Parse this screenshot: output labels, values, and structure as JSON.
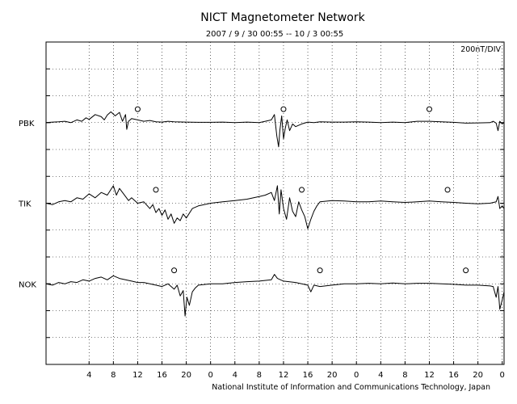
{
  "chart_data": {
    "type": "line",
    "title": "NICT Magnetometer Network",
    "subtitle": "2007 / 9 / 30   00:55 -- 10 / 3   00:55",
    "scale_label": "200nT/DIV",
    "footer": "National Institute of Information and Communications Technology, Japan",
    "grid": true,
    "x_tick_labels": [
      "4",
      "8",
      "12",
      "16",
      "20",
      "0",
      "4",
      "8",
      "12",
      "16",
      "20",
      "0",
      "4",
      "8",
      "12",
      "16",
      "20",
      "0"
    ],
    "x_tick_hours": [
      4,
      8,
      12,
      16,
      20,
      24,
      28,
      32,
      36,
      40,
      44,
      48,
      52,
      56,
      60,
      64,
      68,
      72
    ],
    "xlim_hours": [
      -3.08,
      72.3
    ],
    "y_divisions": 12,
    "series": [
      {
        "name": "PBK",
        "baseline_div": 3,
        "noon_markers_hours": [
          12,
          36,
          60
        ],
        "points": [
          [
            -3.08,
            0.0
          ],
          [
            -2,
            0.02
          ],
          [
            -1,
            0.03
          ],
          [
            0,
            0.05
          ],
          [
            1,
            0.0
          ],
          [
            2,
            0.1
          ],
          [
            2.8,
            0.05
          ],
          [
            3.5,
            0.18
          ],
          [
            4,
            0.12
          ],
          [
            5,
            0.3
          ],
          [
            6,
            0.22
          ],
          [
            6.5,
            0.1
          ],
          [
            7,
            0.28
          ],
          [
            7.6,
            0.4
          ],
          [
            8.3,
            0.25
          ],
          [
            9,
            0.38
          ],
          [
            9.5,
            0.05
          ],
          [
            10,
            0.3
          ],
          [
            10.2,
            -0.25
          ],
          [
            10.5,
            0.05
          ],
          [
            11,
            0.15
          ],
          [
            12,
            0.1
          ],
          [
            13,
            0.05
          ],
          [
            14,
            0.08
          ],
          [
            15,
            0.03
          ],
          [
            16,
            0.02
          ],
          [
            17,
            0.05
          ],
          [
            18,
            0.03
          ],
          [
            20,
            0.02
          ],
          [
            22,
            0.01
          ],
          [
            24,
            0.01
          ],
          [
            26,
            0.02
          ],
          [
            28,
            0.0
          ],
          [
            30,
            0.02
          ],
          [
            32,
            0.0
          ],
          [
            33,
            0.05
          ],
          [
            34,
            0.1
          ],
          [
            34.5,
            0.3
          ],
          [
            34.9,
            -0.5
          ],
          [
            35.2,
            -0.9
          ],
          [
            35.4,
            -0.3
          ],
          [
            35.7,
            0.25
          ],
          [
            36,
            -0.6
          ],
          [
            36.3,
            -0.2
          ],
          [
            36.6,
            0.1
          ],
          [
            37,
            -0.3
          ],
          [
            37.5,
            -0.05
          ],
          [
            38,
            -0.15
          ],
          [
            39,
            -0.05
          ],
          [
            40,
            0.02
          ],
          [
            41,
            0.0
          ],
          [
            42,
            0.03
          ],
          [
            44,
            0.02
          ],
          [
            46,
            0.02
          ],
          [
            48,
            0.03
          ],
          [
            50,
            0.02
          ],
          [
            52,
            0.0
          ],
          [
            54,
            0.02
          ],
          [
            56,
            0.0
          ],
          [
            58,
            0.05
          ],
          [
            60,
            0.05
          ],
          [
            62,
            0.03
          ],
          [
            64,
            0.01
          ],
          [
            66,
            -0.02
          ],
          [
            68,
            -0.01
          ],
          [
            70,
            0.0
          ],
          [
            70.5,
            0.05
          ],
          [
            71,
            -0.02
          ],
          [
            71.3,
            -0.3
          ],
          [
            71.6,
            0.05
          ],
          [
            72,
            -0.05
          ],
          [
            72.3,
            0.0
          ]
        ]
      },
      {
        "name": "TIK",
        "baseline_div": 6,
        "noon_markers_hours": [
          15,
          39,
          63
        ],
        "points": [
          [
            -3.08,
            0.0
          ],
          [
            -2,
            -0.05
          ],
          [
            -1,
            0.05
          ],
          [
            0,
            0.1
          ],
          [
            1,
            0.05
          ],
          [
            2,
            0.2
          ],
          [
            3,
            0.15
          ],
          [
            4,
            0.35
          ],
          [
            5,
            0.2
          ],
          [
            6,
            0.4
          ],
          [
            7,
            0.3
          ],
          [
            8,
            0.65
          ],
          [
            8.5,
            0.3
          ],
          [
            9,
            0.55
          ],
          [
            10,
            0.25
          ],
          [
            10.5,
            0.1
          ],
          [
            11,
            0.2
          ],
          [
            12,
            0.0
          ],
          [
            13,
            0.05
          ],
          [
            14,
            -0.2
          ],
          [
            14.5,
            -0.05
          ],
          [
            15,
            -0.35
          ],
          [
            15.5,
            -0.2
          ],
          [
            16,
            -0.45
          ],
          [
            16.5,
            -0.25
          ],
          [
            17,
            -0.6
          ],
          [
            17.5,
            -0.4
          ],
          [
            18,
            -0.75
          ],
          [
            18.5,
            -0.55
          ],
          [
            19,
            -0.65
          ],
          [
            19.5,
            -0.4
          ],
          [
            20,
            -0.55
          ],
          [
            21,
            -0.2
          ],
          [
            22,
            -0.1
          ],
          [
            24,
            0.0
          ],
          [
            26,
            0.05
          ],
          [
            28,
            0.1
          ],
          [
            30,
            0.15
          ],
          [
            32,
            0.25
          ],
          [
            33,
            0.3
          ],
          [
            34,
            0.4
          ],
          [
            34.5,
            0.1
          ],
          [
            35,
            0.65
          ],
          [
            35.3,
            -0.4
          ],
          [
            35.6,
            0.5
          ],
          [
            36,
            -0.2
          ],
          [
            36.5,
            -0.6
          ],
          [
            37,
            0.2
          ],
          [
            37.5,
            -0.3
          ],
          [
            38,
            -0.5
          ],
          [
            38.5,
            0.05
          ],
          [
            39,
            -0.25
          ],
          [
            39.5,
            -0.5
          ],
          [
            40,
            -0.95
          ],
          [
            40.5,
            -0.6
          ],
          [
            41,
            -0.3
          ],
          [
            41.5,
            -0.1
          ],
          [
            42,
            0.05
          ],
          [
            44,
            0.1
          ],
          [
            46,
            0.08
          ],
          [
            48,
            0.05
          ],
          [
            50,
            0.05
          ],
          [
            52,
            0.08
          ],
          [
            54,
            0.05
          ],
          [
            56,
            0.03
          ],
          [
            58,
            0.05
          ],
          [
            60,
            0.08
          ],
          [
            62,
            0.05
          ],
          [
            64,
            0.03
          ],
          [
            66,
            0.0
          ],
          [
            68,
            -0.02
          ],
          [
            70,
            0.0
          ],
          [
            71,
            0.05
          ],
          [
            71.3,
            0.25
          ],
          [
            71.6,
            -0.2
          ],
          [
            72,
            -0.1
          ],
          [
            72.3,
            -0.2
          ]
        ]
      },
      {
        "name": "NOK",
        "baseline_div": 9,
        "noon_markers_hours": [
          18,
          42,
          66
        ],
        "points": [
          [
            -3.08,
            0.0
          ],
          [
            -2,
            -0.05
          ],
          [
            -1,
            0.05
          ],
          [
            0,
            0.0
          ],
          [
            1,
            0.08
          ],
          [
            2,
            0.05
          ],
          [
            3,
            0.15
          ],
          [
            4,
            0.1
          ],
          [
            5,
            0.2
          ],
          [
            6,
            0.25
          ],
          [
            7,
            0.15
          ],
          [
            8,
            0.3
          ],
          [
            9,
            0.2
          ],
          [
            10,
            0.15
          ],
          [
            11,
            0.1
          ],
          [
            12,
            0.05
          ],
          [
            13,
            0.05
          ],
          [
            14,
            0.0
          ],
          [
            15,
            -0.05
          ],
          [
            16,
            -0.1
          ],
          [
            17,
            0.0
          ],
          [
            18,
            -0.2
          ],
          [
            18.5,
            -0.05
          ],
          [
            19,
            -0.45
          ],
          [
            19.5,
            -0.25
          ],
          [
            19.8,
            -1.2
          ],
          [
            20.1,
            -0.5
          ],
          [
            20.5,
            -0.8
          ],
          [
            21,
            -0.3
          ],
          [
            21.5,
            -0.15
          ],
          [
            22,
            -0.05
          ],
          [
            24,
            0.0
          ],
          [
            26,
            0.0
          ],
          [
            28,
            0.05
          ],
          [
            30,
            0.08
          ],
          [
            32,
            0.1
          ],
          [
            34,
            0.15
          ],
          [
            34.5,
            0.35
          ],
          [
            35,
            0.2
          ],
          [
            36,
            0.1
          ],
          [
            38,
            0.05
          ],
          [
            40,
            -0.05
          ],
          [
            40.5,
            -0.3
          ],
          [
            41,
            -0.05
          ],
          [
            42,
            -0.1
          ],
          [
            44,
            -0.05
          ],
          [
            46,
            0.0
          ],
          [
            48,
            0.0
          ],
          [
            50,
            0.02
          ],
          [
            52,
            0.0
          ],
          [
            54,
            0.03
          ],
          [
            56,
            0.0
          ],
          [
            58,
            0.02
          ],
          [
            60,
            0.02
          ],
          [
            62,
            0.0
          ],
          [
            64,
            -0.02
          ],
          [
            66,
            -0.05
          ],
          [
            68,
            -0.05
          ],
          [
            70,
            -0.08
          ],
          [
            70.5,
            -0.1
          ],
          [
            71,
            -0.5
          ],
          [
            71.3,
            -0.1
          ],
          [
            71.6,
            -0.95
          ],
          [
            72,
            -0.6
          ],
          [
            72.3,
            -0.3
          ]
        ]
      }
    ]
  }
}
